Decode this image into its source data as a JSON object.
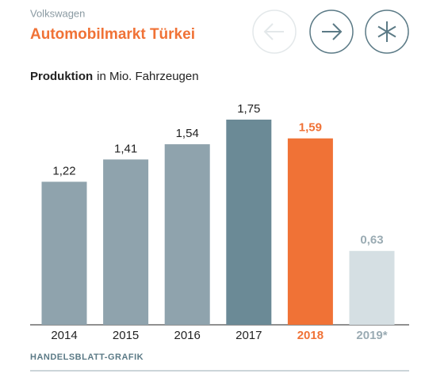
{
  "header": {
    "kicker": "Volkswagen",
    "title": "Automobilmarkt Türkei"
  },
  "chart_data": {
    "type": "bar",
    "subtitle_bold": "Produktion",
    "subtitle": "in Mio. Fahrzeugen",
    "categories": [
      "2014",
      "2015",
      "2016",
      "2017",
      "2018",
      "2019*"
    ],
    "values": [
      1.22,
      1.41,
      1.54,
      1.75,
      1.59,
      0.63
    ],
    "value_labels": [
      "1,22",
      "1,41",
      "1,54",
      "1,75",
      "1,59",
      "0,63"
    ],
    "colors": [
      "#8fa3ad",
      "#8fa3ad",
      "#8fa3ad",
      "#6b8a96",
      "#f07236",
      "#d5dfe3"
    ],
    "label_colors": [
      "#222222",
      "#222222",
      "#222222",
      "#222222",
      "#f07236",
      "#9aabb3"
    ],
    "source": "HANDELSBLATT-GRAFIK"
  }
}
